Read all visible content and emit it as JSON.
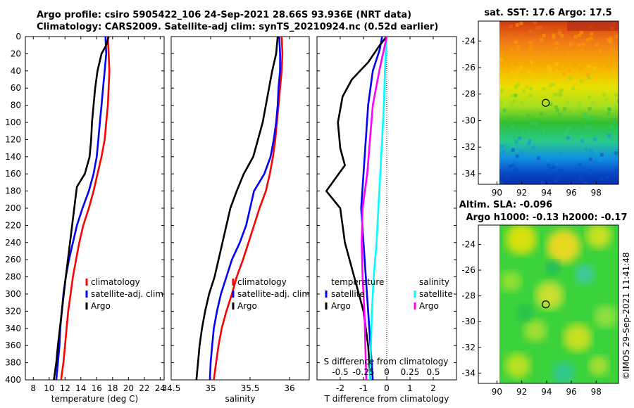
{
  "title": {
    "line1": "Argo profile: csiro 5905422_106 24-Sep-2021 28.66S 93.936E (NRT data)",
    "line2": "Climatology: CARS2009. Satellite-adj clim: synTS_20210924.nc (0.52d earlier)"
  },
  "colors": {
    "climatology": "#ff0000",
    "satellite": "#0000ff",
    "argo": "#000000",
    "sal_sat": "#00ffff",
    "sal_argo": "#ff00ff"
  },
  "depth_axis": {
    "ticks": [
      "0",
      "20",
      "40",
      "60",
      "80",
      "100",
      "120",
      "140",
      "160",
      "180",
      "200",
      "220",
      "240",
      "260",
      "280",
      "300",
      "320",
      "340",
      "360",
      "380",
      "400"
    ]
  },
  "chart_data": [
    {
      "type": "line",
      "name": "temperature",
      "xlabel": "temperature (deg C)",
      "xlim": [
        7,
        24.5
      ],
      "ylim": [
        0,
        400
      ],
      "xticks": [
        8,
        10,
        12,
        14,
        16,
        18,
        20,
        22,
        24
      ],
      "xtick_labels": [
        "8",
        "10",
        "12",
        "14",
        "16",
        "18",
        "20",
        "22",
        "24"
      ],
      "legend": [
        "climatology",
        "satellite-adj. clim",
        "Argo"
      ],
      "series": [
        {
          "name": "climatology",
          "points": [
            [
              17.4,
              0
            ],
            [
              17.5,
              20
            ],
            [
              17.6,
              40
            ],
            [
              17.5,
              60
            ],
            [
              17.4,
              80
            ],
            [
              17.2,
              100
            ],
            [
              17.0,
              120
            ],
            [
              16.6,
              140
            ],
            [
              16.1,
              160
            ],
            [
              15.6,
              180
            ],
            [
              15.0,
              200
            ],
            [
              14.3,
              220
            ],
            [
              13.8,
              240
            ],
            [
              13.4,
              260
            ],
            [
              13.0,
              280
            ],
            [
              12.7,
              300
            ],
            [
              12.4,
              320
            ],
            [
              12.2,
              340
            ],
            [
              12.0,
              360
            ],
            [
              11.8,
              380
            ],
            [
              11.5,
              400
            ]
          ]
        },
        {
          "name": "satellite-adj. clim",
          "points": [
            [
              17.1,
              0
            ],
            [
              17.2,
              20
            ],
            [
              17.0,
              40
            ],
            [
              16.8,
              60
            ],
            [
              16.6,
              80
            ],
            [
              16.4,
              100
            ],
            [
              16.2,
              120
            ],
            [
              16.0,
              140
            ],
            [
              15.6,
              160
            ],
            [
              15.0,
              180
            ],
            [
              14.2,
              200
            ],
            [
              13.5,
              220
            ],
            [
              13.0,
              240
            ],
            [
              12.5,
              260
            ],
            [
              12.1,
              280
            ],
            [
              11.8,
              300
            ],
            [
              11.6,
              320
            ],
            [
              11.4,
              340
            ],
            [
              11.3,
              360
            ],
            [
              11.1,
              380
            ],
            [
              10.9,
              400
            ]
          ]
        },
        {
          "name": "Argo",
          "points": [
            [
              17.5,
              0
            ],
            [
              17.2,
              10
            ],
            [
              16.6,
              20
            ],
            [
              16.1,
              40
            ],
            [
              15.8,
              60
            ],
            [
              15.6,
              80
            ],
            [
              15.4,
              100
            ],
            [
              15.3,
              120
            ],
            [
              15.1,
              140
            ],
            [
              14.5,
              160
            ],
            [
              13.5,
              175
            ],
            [
              13.3,
              190
            ],
            [
              12.9,
              220
            ],
            [
              12.5,
              250
            ],
            [
              12.1,
              280
            ],
            [
              11.6,
              320
            ],
            [
              11.1,
              360
            ],
            [
              10.9,
              380
            ],
            [
              10.6,
              400
            ]
          ]
        }
      ]
    },
    {
      "type": "line",
      "name": "salinity",
      "xlabel": "salinity",
      "xlim": [
        34.5,
        36.25
      ],
      "ylim": [
        0,
        400
      ],
      "xticks": [
        34.5,
        35,
        35.5,
        36
      ],
      "xtick_labels": [
        "34.5",
        "35",
        "35.5",
        "36"
      ],
      "legend": [
        "climatology",
        "satellite-adj. clim",
        "Argo"
      ],
      "series": [
        {
          "name": "climatology",
          "points": [
            [
              35.9,
              0
            ],
            [
              35.91,
              20
            ],
            [
              35.9,
              40
            ],
            [
              35.88,
              60
            ],
            [
              35.86,
              80
            ],
            [
              35.84,
              100
            ],
            [
              35.82,
              120
            ],
            [
              35.79,
              140
            ],
            [
              35.75,
              160
            ],
            [
              35.7,
              180
            ],
            [
              35.62,
              200
            ],
            [
              35.55,
              220
            ],
            [
              35.48,
              240
            ],
            [
              35.41,
              260
            ],
            [
              35.33,
              280
            ],
            [
              35.27,
              300
            ],
            [
              35.2,
              320
            ],
            [
              35.14,
              340
            ],
            [
              35.1,
              360
            ],
            [
              35.07,
              380
            ],
            [
              35.04,
              400
            ]
          ]
        },
        {
          "name": "satellite-adj. clim",
          "points": [
            [
              35.87,
              0
            ],
            [
              35.88,
              20
            ],
            [
              35.88,
              40
            ],
            [
              35.86,
              60
            ],
            [
              35.85,
              80
            ],
            [
              35.83,
              100
            ],
            [
              35.8,
              120
            ],
            [
              35.76,
              140
            ],
            [
              35.68,
              160
            ],
            [
              35.55,
              180
            ],
            [
              35.5,
              200
            ],
            [
              35.45,
              220
            ],
            [
              35.37,
              240
            ],
            [
              35.27,
              260
            ],
            [
              35.2,
              280
            ],
            [
              35.13,
              300
            ],
            [
              35.08,
              320
            ],
            [
              35.04,
              340
            ],
            [
              35.02,
              360
            ],
            [
              35.0,
              380
            ],
            [
              34.99,
              400
            ]
          ]
        },
        {
          "name": "Argo",
          "points": [
            [
              35.85,
              0
            ],
            [
              35.83,
              20
            ],
            [
              35.78,
              40
            ],
            [
              35.74,
              60
            ],
            [
              35.7,
              80
            ],
            [
              35.66,
              100
            ],
            [
              35.6,
              120
            ],
            [
              35.54,
              140
            ],
            [
              35.42,
              160
            ],
            [
              35.33,
              180
            ],
            [
              35.25,
              200
            ],
            [
              35.2,
              220
            ],
            [
              35.15,
              240
            ],
            [
              35.1,
              260
            ],
            [
              35.05,
              280
            ],
            [
              34.98,
              300
            ],
            [
              34.93,
              320
            ],
            [
              34.89,
              340
            ],
            [
              34.86,
              360
            ],
            [
              34.84,
              380
            ],
            [
              34.82,
              400
            ]
          ]
        }
      ]
    },
    {
      "type": "line",
      "name": "difference",
      "xlabel": "T difference from climatology",
      "xlabel_top": "S difference from climatology",
      "xlim": [
        -3,
        3
      ],
      "ylim": [
        0,
        400
      ],
      "xticks": [
        -2,
        -1,
        0,
        1,
        2
      ],
      "xtick_labels": [
        "-2",
        "-1",
        "0",
        "1",
        "2"
      ],
      "s_xticks": [
        -0.5,
        -0.25,
        0,
        0.25,
        0.5
      ],
      "s_xtick_labels": [
        "-0.5",
        "-0.25",
        "0",
        "0.25",
        "0.5"
      ],
      "s_xlim": [
        -0.75,
        0.75
      ],
      "legend_temp_header": "temperature",
      "legend_sal_header": "salinity",
      "legend_temp": [
        "satellite",
        "Argo"
      ],
      "legend_sal": [
        "satellite",
        "Argo"
      ],
      "series": [
        {
          "name": "T satellite",
          "axis": "T",
          "points": [
            [
              -0.2,
              0
            ],
            [
              -0.3,
              15
            ],
            [
              -0.6,
              40
            ],
            [
              -0.8,
              80
            ],
            [
              -0.9,
              120
            ],
            [
              -1.0,
              160
            ],
            [
              -1.1,
              200
            ],
            [
              -1.0,
              240
            ],
            [
              -0.9,
              280
            ],
            [
              -0.8,
              320
            ],
            [
              -0.7,
              360
            ],
            [
              -0.6,
              400
            ]
          ]
        },
        {
          "name": "T Argo",
          "axis": "T",
          "points": [
            [
              0,
              0
            ],
            [
              -0.3,
              10
            ],
            [
              -0.8,
              30
            ],
            [
              -1.5,
              50
            ],
            [
              -1.9,
              70
            ],
            [
              -2.1,
              100
            ],
            [
              -2.0,
              130
            ],
            [
              -1.8,
              150
            ],
            [
              -2.2,
              165
            ],
            [
              -2.6,
              180
            ],
            [
              -2.0,
              200
            ],
            [
              -1.8,
              240
            ],
            [
              -1.6,
              260
            ],
            [
              -1.3,
              290
            ],
            [
              -1.0,
              320
            ],
            [
              -0.8,
              360
            ],
            [
              -0.7,
              400
            ]
          ]
        },
        {
          "name": "S satellite",
          "axis": "S",
          "points": [
            [
              0,
              0
            ],
            [
              -0.02,
              40
            ],
            [
              -0.03,
              80
            ],
            [
              -0.05,
              120
            ],
            [
              -0.07,
              160
            ],
            [
              -0.09,
              200
            ],
            [
              -0.11,
              240
            ],
            [
              -0.14,
              280
            ],
            [
              -0.16,
              320
            ],
            [
              -0.17,
              360
            ],
            [
              -0.18,
              400
            ]
          ]
        },
        {
          "name": "S Argo",
          "axis": "S",
          "points": [
            [
              0,
              0
            ],
            [
              -0.08,
              40
            ],
            [
              -0.15,
              80
            ],
            [
              -0.18,
              120
            ],
            [
              -0.21,
              160
            ],
            [
              -0.26,
              200
            ],
            [
              -0.27,
              240
            ],
            [
              -0.26,
              280
            ],
            [
              -0.24,
              320
            ],
            [
              -0.23,
              360
            ],
            [
              -0.22,
              400
            ]
          ]
        }
      ]
    },
    {
      "type": "heatmap",
      "name": "sst_map",
      "title": "sat. SST: 17.6 Argo: 17.5",
      "xlim": [
        88.5,
        99.8
      ],
      "ylim": [
        -34.8,
        -22.5
      ],
      "xticks": [
        90,
        92,
        94,
        96,
        98
      ],
      "xtick_labels": [
        "90",
        "92",
        "94",
        "96",
        "98"
      ],
      "yticks": [
        -24,
        -26,
        -28,
        -30,
        -32,
        -34
      ],
      "ytick_labels": [
        "-24",
        "-26",
        "-28",
        "-30",
        "-32",
        "-34"
      ],
      "float_position": [
        93.936,
        -28.66
      ]
    },
    {
      "type": "heatmap",
      "name": "sla_map",
      "title": "Altim. SLA: -0.096",
      "subtitle": "Argo h1000: -0.13 h2000: -0.17",
      "xlim": [
        88.5,
        99.8
      ],
      "ylim": [
        -34.8,
        -22.5
      ],
      "xticks": [
        90,
        92,
        94,
        96,
        98
      ],
      "xtick_labels": [
        "90",
        "92",
        "94",
        "96",
        "98"
      ],
      "yticks": [
        -24,
        -26,
        -28,
        -30,
        -32,
        -34
      ],
      "ytick_labels": [
        "-24",
        "-26",
        "-28",
        "-30",
        "-32",
        "-34"
      ],
      "float_position": [
        93.936,
        -28.66
      ]
    }
  ],
  "watermark": "©IMOS 29-Sep-2021 11:41:48"
}
